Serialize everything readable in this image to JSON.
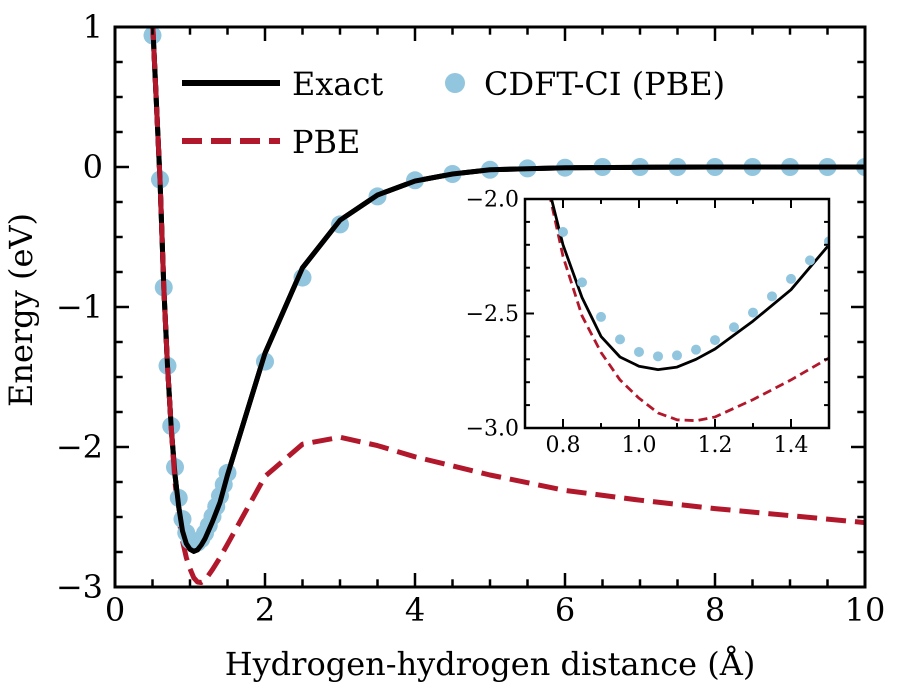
{
  "chart_data": [
    {
      "type": "line",
      "xlabel": "Hydrogen-hydrogen distance (Å)",
      "ylabel": "Energy (eV)",
      "xlim": [
        0,
        10
      ],
      "ylim": [
        -3,
        1
      ],
      "xticks": [
        "0",
        "2",
        "4",
        "6",
        "8",
        "10"
      ],
      "yticks": [
        "−3",
        "−2",
        "−1",
        "0",
        "1"
      ],
      "grid": false,
      "legend_position": "top",
      "colors": {
        "exact": "#000000",
        "pbe": "#b2182b",
        "cdft": "#92c5de"
      },
      "series": [
        {
          "name": "Exact",
          "style": "solid",
          "x": [
            0.5,
            0.6,
            0.65,
            0.7,
            0.75,
            0.8,
            0.85,
            0.9,
            0.95,
            1.0,
            1.05,
            1.1,
            1.15,
            1.2,
            1.3,
            1.4,
            1.5,
            2.0,
            2.5,
            3.0,
            3.5,
            4.0,
            4.5,
            5.0,
            6.0,
            7.0,
            8.0,
            10.0
          ],
          "y": [
            1.05,
            -0.09,
            -0.86,
            -1.42,
            -1.87,
            -2.2,
            -2.43,
            -2.6,
            -2.69,
            -2.73,
            -2.745,
            -2.734,
            -2.7,
            -2.655,
            -2.533,
            -2.396,
            -2.2,
            -1.33,
            -0.72,
            -0.38,
            -0.2,
            -0.1,
            -0.05,
            -0.02,
            -0.005,
            -0.002,
            0,
            0
          ]
        },
        {
          "name": "PBE",
          "style": "dashed",
          "x": [
            0.5,
            0.6,
            0.65,
            0.7,
            0.75,
            0.8,
            0.85,
            0.9,
            0.95,
            1.0,
            1.05,
            1.1,
            1.15,
            1.2,
            1.3,
            1.4,
            1.5,
            2.0,
            2.5,
            3.0,
            3.5,
            4.0,
            5.0,
            6.0,
            7.0,
            8.0,
            9.0,
            10.0
          ],
          "y": [
            1.05,
            -0.09,
            -0.86,
            -1.42,
            -1.87,
            -2.25,
            -2.51,
            -2.67,
            -2.79,
            -2.87,
            -2.934,
            -2.964,
            -2.968,
            -2.952,
            -2.876,
            -2.79,
            -2.694,
            -2.21,
            -1.98,
            -1.93,
            -1.99,
            -2.07,
            -2.2,
            -2.31,
            -2.38,
            -2.44,
            -2.49,
            -2.54
          ]
        },
        {
          "name": "CDFT-CI (PBE)",
          "style": "markers",
          "x": [
            0.5,
            0.6,
            0.65,
            0.7,
            0.75,
            0.8,
            0.85,
            0.9,
            0.95,
            1.0,
            1.05,
            1.1,
            1.15,
            1.2,
            1.25,
            1.3,
            1.35,
            1.4,
            1.45,
            1.5,
            2.0,
            2.5,
            3.0,
            3.5,
            4.0,
            4.5,
            5.0,
            5.5,
            6.0,
            6.5,
            7.0,
            7.5,
            8.0,
            8.5,
            9.0,
            9.5,
            10.0
          ],
          "y": [
            0.94,
            -0.09,
            -0.86,
            -1.42,
            -1.85,
            -2.144,
            -2.364,
            -2.515,
            -2.613,
            -2.668,
            -2.687,
            -2.683,
            -2.658,
            -2.616,
            -2.56,
            -2.496,
            -2.425,
            -2.349,
            -2.268,
            -2.185,
            -1.39,
            -0.79,
            -0.41,
            -0.21,
            -0.095,
            -0.05,
            -0.02,
            -0.01,
            -0.005,
            0,
            0,
            0,
            0,
            0,
            0,
            0,
            0
          ]
        }
      ]
    },
    {
      "type": "line",
      "inset": true,
      "xlim": [
        0.7,
        1.5
      ],
      "ylim": [
        -3.0,
        -2.0
      ],
      "xticks": [
        "0.8",
        "1.0",
        "1.2",
        "1.4"
      ],
      "yticks": [
        "−3.0",
        "−2.5",
        "−2.0"
      ],
      "series_ref": [
        "Exact",
        "PBE",
        "CDFT-CI (PBE)"
      ]
    }
  ]
}
